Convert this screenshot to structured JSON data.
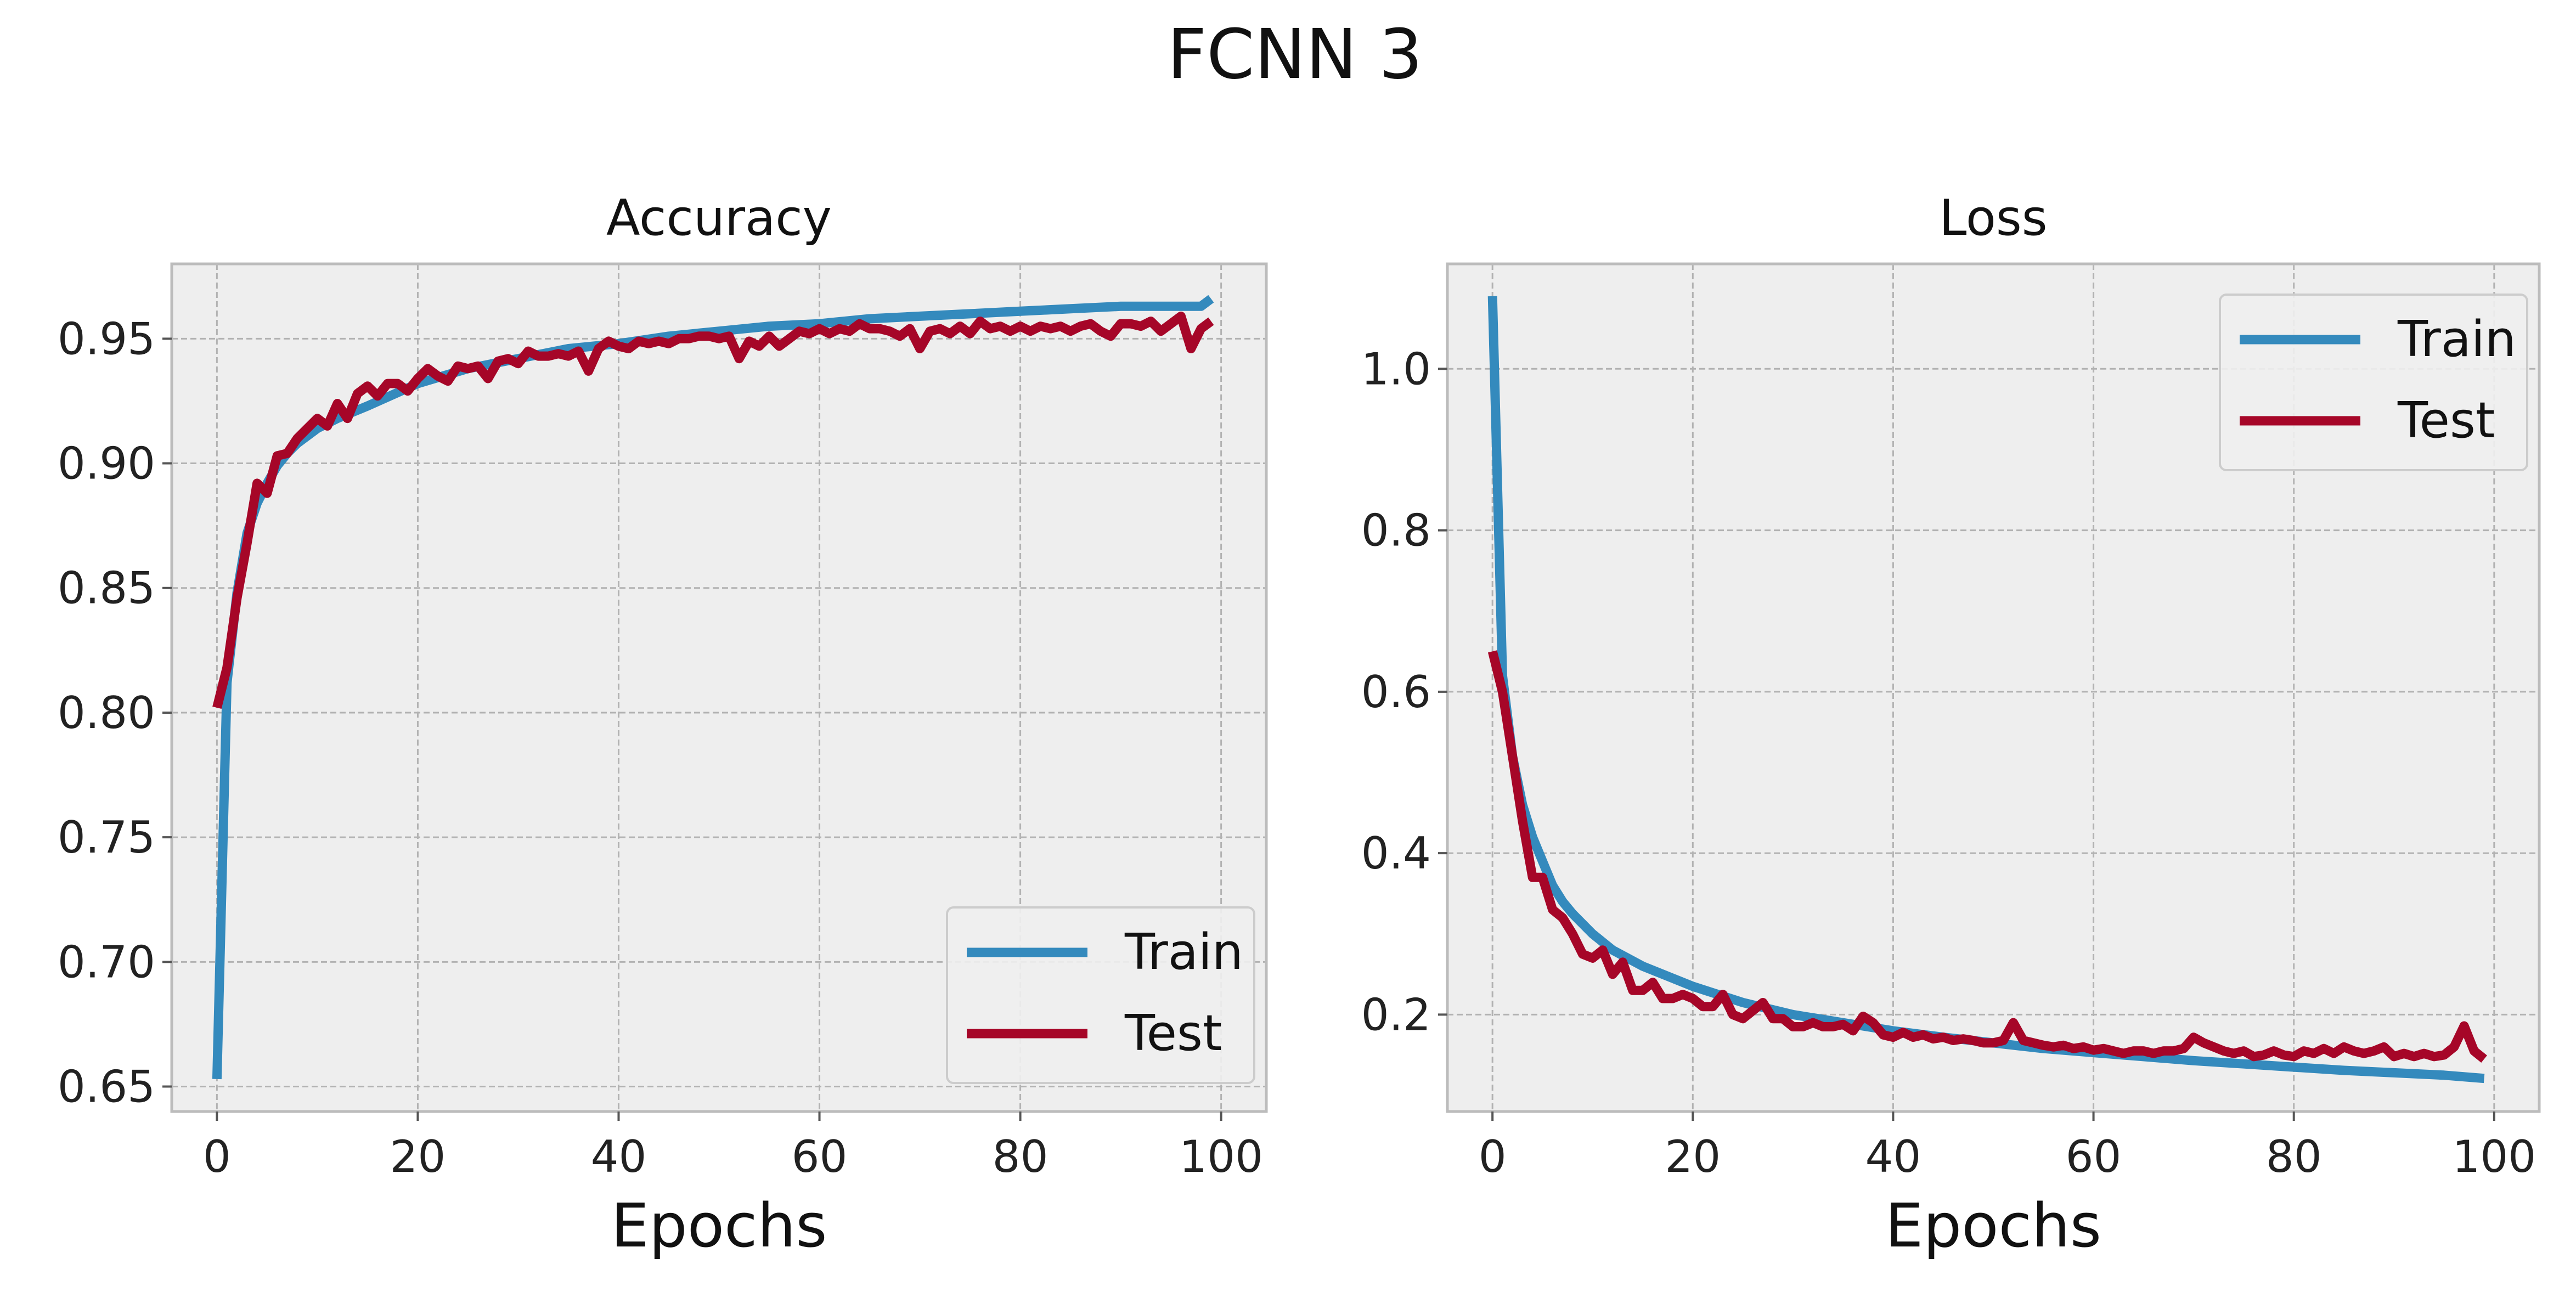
{
  "figure": {
    "title": "FCNN 3"
  },
  "colors": {
    "train": "#348ABD",
    "test": "#A60628",
    "panel_bg": "#EEEEEE",
    "grid": "#B2B2B2",
    "frame": "#BCBCBC"
  },
  "chart_data": [
    {
      "type": "line",
      "title": "Accuracy",
      "xlabel": "Epochs",
      "ylabel": "",
      "xlim": [
        -4.5,
        104.5
      ],
      "ylim": [
        0.64,
        0.98
      ],
      "xticks": [
        0,
        20,
        40,
        60,
        80,
        100
      ],
      "xtick_labels": [
        "0",
        "20",
        "40",
        "60",
        "80",
        "100"
      ],
      "yticks": [
        0.65,
        0.7,
        0.75,
        0.8,
        0.85,
        0.9,
        0.95
      ],
      "ytick_labels": [
        "0.65",
        "0.70",
        "0.75",
        "0.80",
        "0.85",
        "0.90",
        "0.95"
      ],
      "grid": true,
      "legend": "lower-right",
      "series": [
        {
          "name": "Train",
          "color": "#348ABD",
          "x": [
            0,
            1,
            2,
            3,
            4,
            5,
            6,
            7,
            8,
            10,
            12,
            15,
            20,
            25,
            30,
            35,
            40,
            45,
            50,
            55,
            60,
            65,
            70,
            75,
            80,
            85,
            90,
            95,
            98,
            99
          ],
          "y": [
            0.653,
            0.812,
            0.848,
            0.872,
            0.884,
            0.892,
            0.899,
            0.904,
            0.908,
            0.914,
            0.918,
            0.923,
            0.932,
            0.938,
            0.942,
            0.946,
            0.948,
            0.951,
            0.953,
            0.955,
            0.956,
            0.958,
            0.959,
            0.96,
            0.961,
            0.962,
            0.963,
            0.963,
            0.963,
            0.966
          ]
        },
        {
          "name": "Test",
          "color": "#A60628",
          "x": [
            0,
            1,
            2,
            3,
            4,
            5,
            6,
            7,
            8,
            9,
            10,
            11,
            12,
            13,
            14,
            15,
            16,
            17,
            18,
            19,
            20,
            21,
            22,
            23,
            24,
            25,
            26,
            27,
            28,
            29,
            30,
            31,
            32,
            33,
            34,
            35,
            36,
            37,
            38,
            39,
            40,
            41,
            42,
            43,
            44,
            45,
            46,
            47,
            48,
            49,
            50,
            51,
            52,
            53,
            54,
            55,
            56,
            57,
            58,
            59,
            60,
            61,
            62,
            63,
            64,
            65,
            66,
            67,
            68,
            69,
            70,
            71,
            72,
            73,
            74,
            75,
            76,
            77,
            78,
            79,
            80,
            81,
            82,
            83,
            84,
            85,
            86,
            87,
            88,
            89,
            90,
            91,
            92,
            93,
            94,
            95,
            96,
            97,
            98,
            99
          ],
          "y": [
            0.802,
            0.818,
            0.846,
            0.868,
            0.892,
            0.888,
            0.903,
            0.904,
            0.91,
            0.914,
            0.918,
            0.915,
            0.924,
            0.918,
            0.928,
            0.931,
            0.927,
            0.932,
            0.932,
            0.929,
            0.934,
            0.938,
            0.935,
            0.933,
            0.939,
            0.938,
            0.939,
            0.934,
            0.941,
            0.942,
            0.94,
            0.945,
            0.943,
            0.943,
            0.944,
            0.943,
            0.945,
            0.937,
            0.946,
            0.949,
            0.947,
            0.946,
            0.949,
            0.948,
            0.949,
            0.948,
            0.95,
            0.95,
            0.951,
            0.951,
            0.95,
            0.951,
            0.942,
            0.949,
            0.947,
            0.951,
            0.947,
            0.95,
            0.953,
            0.952,
            0.954,
            0.952,
            0.954,
            0.953,
            0.956,
            0.954,
            0.954,
            0.953,
            0.951,
            0.954,
            0.946,
            0.953,
            0.954,
            0.952,
            0.955,
            0.952,
            0.957,
            0.954,
            0.955,
            0.953,
            0.955,
            0.953,
            0.955,
            0.954,
            0.955,
            0.953,
            0.955,
            0.956,
            0.953,
            0.951,
            0.956,
            0.956,
            0.955,
            0.957,
            0.953,
            0.956,
            0.959,
            0.946,
            0.954,
            0.957
          ]
        }
      ]
    },
    {
      "type": "line",
      "title": "Loss",
      "xlabel": "Epochs",
      "ylabel": "",
      "xlim": [
        -4.5,
        104.5
      ],
      "ylim": [
        0.08,
        1.13
      ],
      "xticks": [
        0,
        20,
        40,
        60,
        80,
        100
      ],
      "xtick_labels": [
        "0",
        "20",
        "40",
        "60",
        "80",
        "100"
      ],
      "yticks": [
        0.2,
        0.4,
        0.6,
        0.8,
        1.0
      ],
      "ytick_labels": [
        "0.2",
        "0.4",
        "0.6",
        "0.8",
        "1.0"
      ],
      "grid": true,
      "legend": "upper-right",
      "series": [
        {
          "name": "Train",
          "color": "#348ABD",
          "x": [
            0,
            1,
            2,
            3,
            4,
            5,
            6,
            7,
            8,
            10,
            12,
            15,
            20,
            25,
            30,
            35,
            40,
            45,
            50,
            55,
            60,
            65,
            70,
            75,
            80,
            85,
            90,
            95,
            99
          ],
          "y": [
            1.09,
            0.62,
            0.52,
            0.46,
            0.42,
            0.39,
            0.36,
            0.34,
            0.325,
            0.3,
            0.28,
            0.26,
            0.235,
            0.215,
            0.2,
            0.19,
            0.18,
            0.172,
            0.165,
            0.158,
            0.153,
            0.148,
            0.143,
            0.139,
            0.135,
            0.131,
            0.128,
            0.125,
            0.121
          ]
        },
        {
          "name": "Test",
          "color": "#A60628",
          "x": [
            0,
            1,
            2,
            3,
            4,
            5,
            6,
            7,
            8,
            9,
            10,
            11,
            12,
            13,
            14,
            15,
            16,
            17,
            18,
            19,
            20,
            21,
            22,
            23,
            24,
            25,
            26,
            27,
            28,
            29,
            30,
            31,
            32,
            33,
            34,
            35,
            36,
            37,
            38,
            39,
            40,
            41,
            42,
            43,
            44,
            45,
            46,
            47,
            48,
            49,
            50,
            51,
            52,
            53,
            54,
            55,
            56,
            57,
            58,
            59,
            60,
            61,
            62,
            63,
            64,
            65,
            66,
            67,
            68,
            69,
            70,
            71,
            72,
            73,
            74,
            75,
            76,
            77,
            78,
            79,
            80,
            81,
            82,
            83,
            84,
            85,
            86,
            87,
            88,
            89,
            90,
            91,
            92,
            93,
            94,
            95,
            96,
            97,
            98,
            99
          ],
          "y": [
            0.65,
            0.6,
            0.52,
            0.44,
            0.37,
            0.37,
            0.33,
            0.32,
            0.3,
            0.275,
            0.27,
            0.28,
            0.25,
            0.265,
            0.23,
            0.23,
            0.24,
            0.22,
            0.22,
            0.225,
            0.22,
            0.21,
            0.21,
            0.225,
            0.2,
            0.195,
            0.205,
            0.215,
            0.195,
            0.195,
            0.185,
            0.185,
            0.19,
            0.185,
            0.185,
            0.188,
            0.18,
            0.198,
            0.19,
            0.175,
            0.172,
            0.178,
            0.172,
            0.175,
            0.17,
            0.172,
            0.168,
            0.17,
            0.168,
            0.165,
            0.165,
            0.168,
            0.19,
            0.168,
            0.165,
            0.162,
            0.16,
            0.162,
            0.158,
            0.16,
            0.156,
            0.158,
            0.155,
            0.152,
            0.155,
            0.155,
            0.152,
            0.155,
            0.155,
            0.158,
            0.172,
            0.165,
            0.16,
            0.155,
            0.152,
            0.155,
            0.148,
            0.15,
            0.155,
            0.15,
            0.148,
            0.155,
            0.152,
            0.158,
            0.152,
            0.16,
            0.155,
            0.152,
            0.155,
            0.16,
            0.148,
            0.152,
            0.148,
            0.152,
            0.148,
            0.15,
            0.16,
            0.186,
            0.155,
            0.145
          ]
        }
      ]
    }
  ]
}
